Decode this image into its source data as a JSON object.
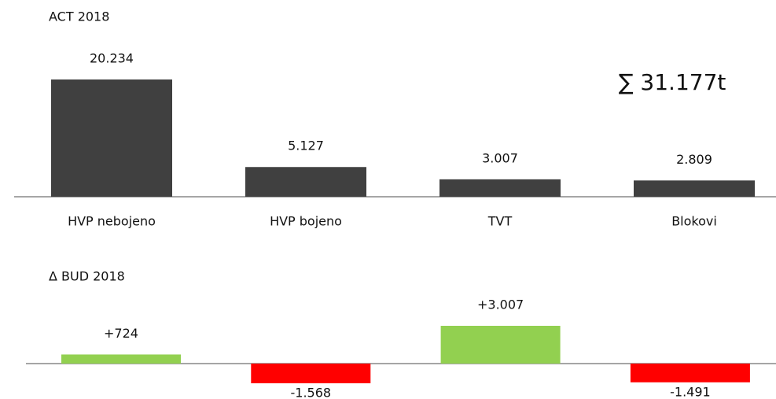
{
  "chart_data": [
    {
      "type": "bar",
      "title": "ACT 2018",
      "annotation": "∑ 31.177t",
      "categories": [
        "HVP nebojeno",
        "HVP bojeno",
        "TVT",
        "Blokovi"
      ],
      "values": [
        20234,
        5127,
        3007,
        2809
      ],
      "value_labels": [
        "20.234",
        "5.127",
        "3.007",
        "2.809"
      ],
      "color": "#404040"
    },
    {
      "type": "delta",
      "title": "Δ BUD 2018",
      "values": [
        724,
        -1568,
        3007,
        -1491
      ],
      "value_labels": [
        "+724",
        "-1.568",
        "+3.007",
        "-1.491"
      ],
      "positive_color": "#92d050",
      "negative_color": "#ff0000"
    }
  ]
}
